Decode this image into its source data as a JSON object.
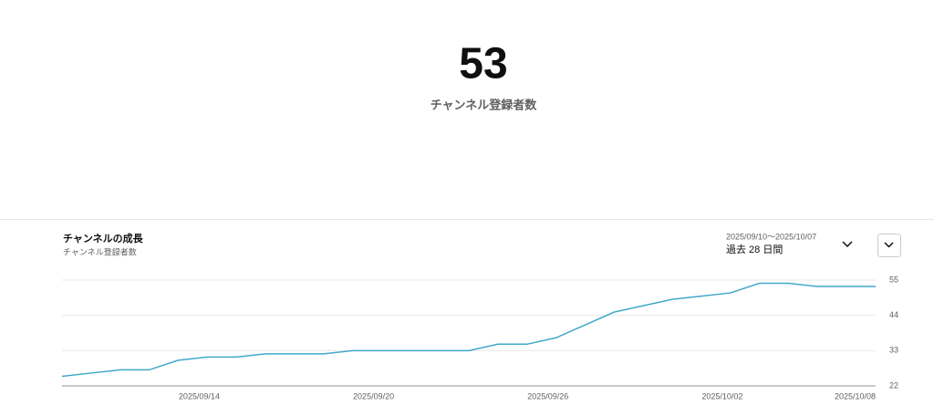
{
  "summary": {
    "value": 53,
    "label": "チャンネル登録者数"
  },
  "chart_data": {
    "type": "line",
    "title": "チャンネルの成長",
    "subtitle": "チャンネル登録者数",
    "date_range": "2025/09/10〜2025/10/07",
    "period": "過去 28 日間",
    "categories": [
      null,
      null,
      null,
      null,
      "2025/09/14",
      null,
      null,
      null,
      null,
      null,
      "2025/09/20",
      null,
      null,
      null,
      null,
      null,
      "2025/09/26",
      null,
      null,
      null,
      null,
      null,
      "2025/10/02",
      null,
      null,
      null,
      null,
      null,
      "2025/10/08"
    ],
    "values": [
      25,
      26,
      27,
      27,
      30,
      31,
      31,
      32,
      32,
      32,
      33,
      33,
      33,
      33,
      33,
      35,
      35,
      37,
      41,
      45,
      47,
      49,
      50,
      51,
      54,
      54,
      53,
      53,
      53
    ],
    "color": "#41a9c9",
    "ylim": [
      22,
      55
    ],
    "yticks": [
      22,
      33,
      44,
      55
    ],
    "grid": true
  }
}
